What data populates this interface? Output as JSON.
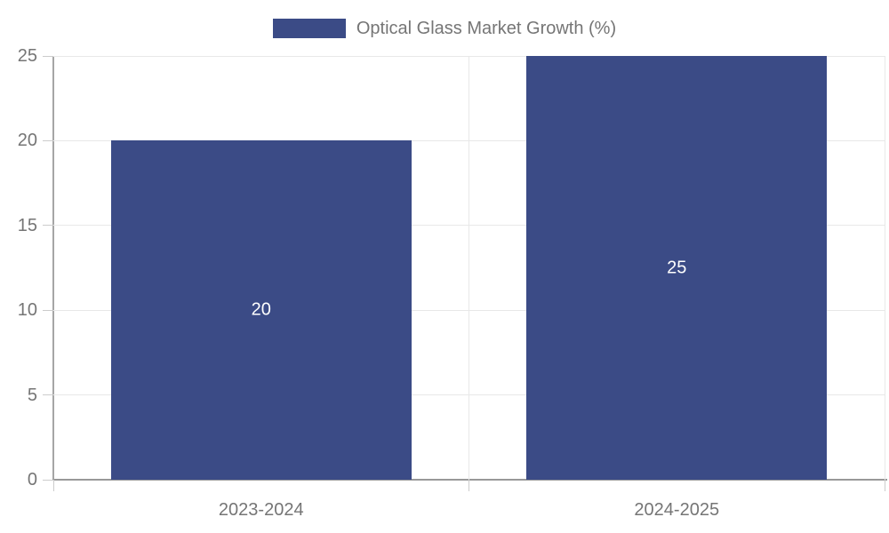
{
  "chart_data": {
    "type": "bar",
    "title": "",
    "series_name": "Optical Glass Market Growth (%)",
    "categories": [
      "2023-2024",
      "2024-2025"
    ],
    "values": [
      20,
      25
    ],
    "value_labels": [
      "20",
      "25"
    ],
    "xlabel": "",
    "ylabel": "",
    "ylim": [
      0,
      25
    ],
    "yticks": [
      0,
      5,
      10,
      15,
      20,
      25
    ],
    "grid": true,
    "legend_position": "top-center",
    "colors": {
      "bar": "#3b4b86",
      "tick_text": "#757575",
      "value_label_text": "#ffffff",
      "gridline": "#e8e8e8",
      "axis_line": "#999999"
    }
  }
}
